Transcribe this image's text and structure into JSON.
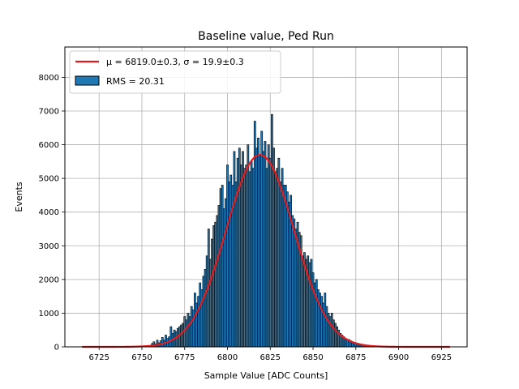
{
  "chart_data": {
    "type": "bar",
    "title": "Baseline value, Ped Run",
    "xlabel": "Sample Value [ADC Counts]",
    "ylabel": "Events",
    "xlim": [
      6705,
      6940
    ],
    "ylim": [
      0,
      8900
    ],
    "xticks": [
      6725,
      6750,
      6775,
      6800,
      6825,
      6850,
      6875,
      6900,
      6925
    ],
    "yticks": [
      0,
      1000,
      2000,
      3000,
      4000,
      5000,
      6000,
      7000,
      8000
    ],
    "grid": true,
    "legend_position": "top-left",
    "bar_color": "#1f77b4",
    "bar_edge_color": "#000000",
    "fit_color": "#e31a1c",
    "series": [
      {
        "name": "RMS = 20.31",
        "kind": "histogram",
        "bin_width": 1
      },
      {
        "name": "μ = 6819.0±0.3, σ = 19.9±0.3",
        "kind": "gaussian-fit",
        "mu": 6819.0,
        "sigma": 19.9,
        "amplitude": 5700,
        "x_range": [
          6715,
          6930
        ]
      }
    ],
    "x": [
      6756,
      6757,
      6758,
      6759,
      6760,
      6761,
      6762,
      6763,
      6764,
      6765,
      6766,
      6767,
      6768,
      6769,
      6770,
      6771,
      6772,
      6773,
      6774,
      6775,
      6776,
      6777,
      6778,
      6779,
      6780,
      6781,
      6782,
      6783,
      6784,
      6785,
      6786,
      6787,
      6788,
      6789,
      6790,
      6791,
      6792,
      6793,
      6794,
      6795,
      6796,
      6797,
      6798,
      6799,
      6800,
      6801,
      6802,
      6803,
      6804,
      6805,
      6806,
      6807,
      6808,
      6809,
      6810,
      6811,
      6812,
      6813,
      6814,
      6815,
      6816,
      6817,
      6818,
      6819,
      6820,
      6821,
      6822,
      6823,
      6824,
      6825,
      6826,
      6827,
      6828,
      6829,
      6830,
      6831,
      6832,
      6833,
      6834,
      6835,
      6836,
      6837,
      6838,
      6839,
      6840,
      6841,
      6842,
      6843,
      6844,
      6845,
      6846,
      6847,
      6848,
      6849,
      6850,
      6851,
      6852,
      6853,
      6854,
      6855,
      6856,
      6857,
      6858,
      6859,
      6860,
      6861,
      6862,
      6863,
      6864,
      6865,
      6866,
      6867,
      6868,
      6869,
      6870,
      6871,
      6872,
      6873,
      6874,
      6875,
      6876,
      6877,
      6878,
      6879,
      6880,
      6881,
      6882,
      6883,
      6884
    ],
    "values": [
      100,
      150,
      90,
      200,
      120,
      180,
      280,
      200,
      350,
      250,
      300,
      600,
      400,
      500,
      450,
      550,
      600,
      650,
      700,
      900,
      800,
      1000,
      900,
      1200,
      1100,
      1600,
      1300,
      1500,
      1900,
      1700,
      2100,
      2300,
      2700,
      3500,
      2600,
      3200,
      3600,
      3700,
      3900,
      4200,
      4700,
      4800,
      4100,
      4400,
      5400,
      4900,
      5100,
      4800,
      5800,
      4900,
      5600,
      5900,
      5400,
      5800,
      5300,
      5400,
      6000,
      5200,
      5500,
      5300,
      6700,
      5900,
      6200,
      5700,
      6400,
      5800,
      6100,
      5300,
      6000,
      5600,
      6900,
      5900,
      5200,
      5300,
      5600,
      4900,
      5300,
      4800,
      4800,
      4600,
      4300,
      4500,
      3900,
      3800,
      3500,
      3700,
      3400,
      3300,
      2700,
      2800,
      2600,
      2700,
      2500,
      2600,
      2200,
      1900,
      2000,
      1700,
      1600,
      1500,
      1300,
      1600,
      1200,
      1000,
      900,
      1000,
      800,
      700,
      600,
      500,
      400,
      350,
      300,
      250,
      200,
      220,
      180,
      150,
      120,
      100,
      80,
      70,
      60,
      50,
      40,
      30,
      25,
      20,
      15
    ]
  }
}
